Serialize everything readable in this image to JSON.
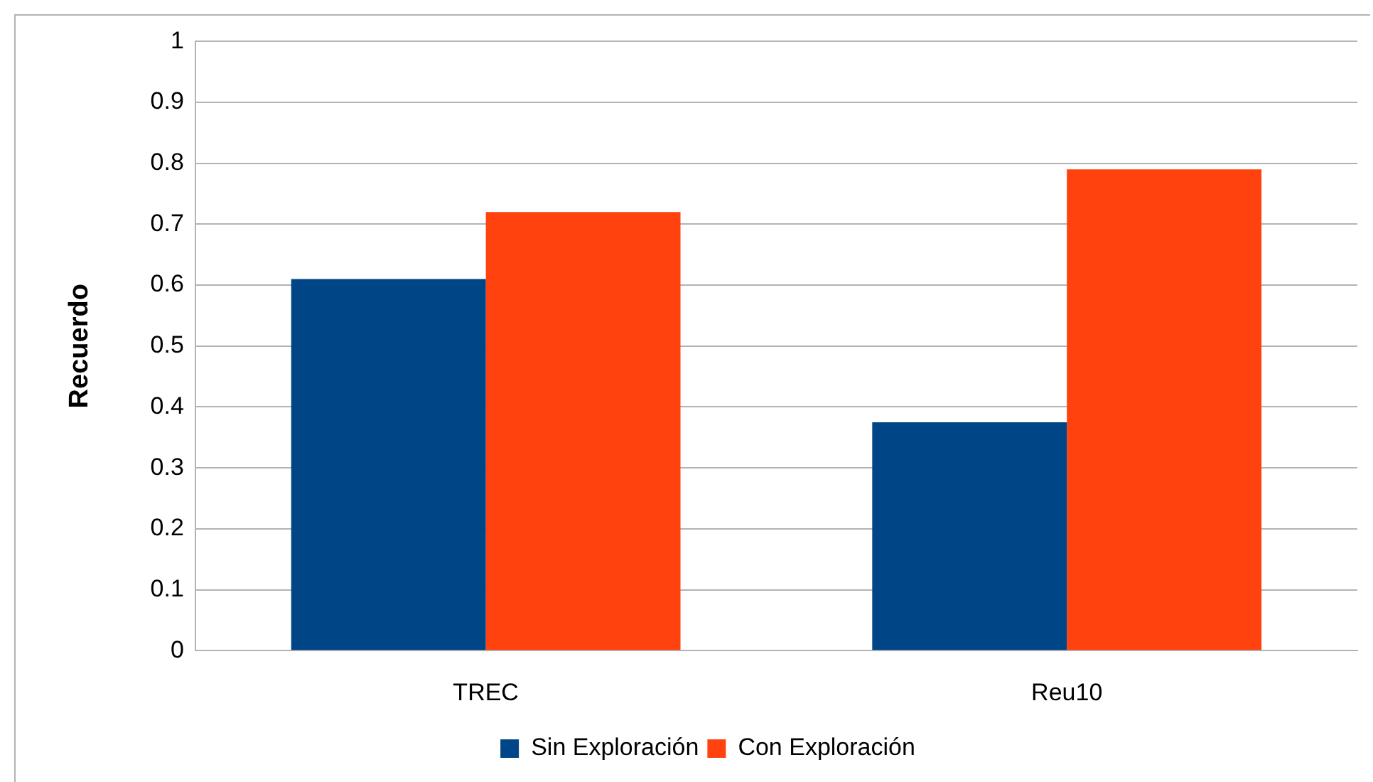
{
  "chart_data": {
    "type": "bar",
    "ylabel": "Recuerdo",
    "categories": [
      "TREC",
      "Reu10"
    ],
    "series": [
      {
        "name": "Sin Exploración",
        "color": "#004586",
        "values": [
          0.61,
          0.375
        ]
      },
      {
        "name": "Con Exploración",
        "color": "#ff420e",
        "values": [
          0.72,
          0.79
        ]
      }
    ],
    "ylim": [
      0,
      1
    ],
    "yticks": [
      0,
      0.1,
      0.2,
      0.3,
      0.4,
      0.5,
      0.6,
      0.7,
      0.8,
      0.9,
      1
    ],
    "grid": "y",
    "legend": "bottom"
  }
}
